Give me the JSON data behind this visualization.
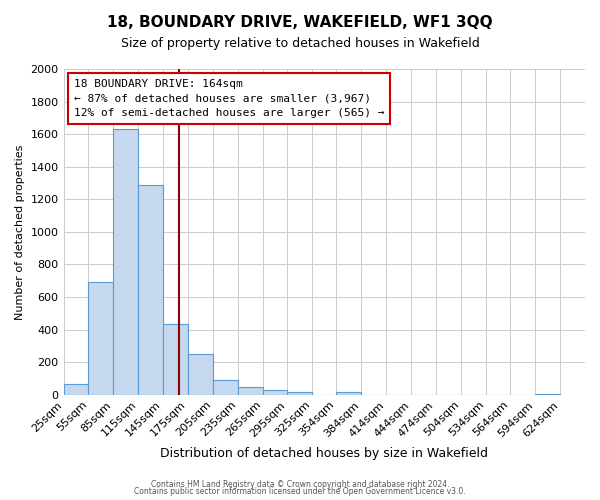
{
  "title": "18, BOUNDARY DRIVE, WAKEFIELD, WF1 3QQ",
  "subtitle": "Size of property relative to detached houses in Wakefield",
  "xlabel": "Distribution of detached houses by size in Wakefield",
  "ylabel": "Number of detached properties",
  "bar_heights": [
    65,
    690,
    1630,
    1285,
    435,
    250,
    90,
    50,
    30,
    20,
    0,
    15,
    0,
    0,
    0,
    0,
    0,
    0,
    0,
    5
  ],
  "bin_labels": [
    "25sqm",
    "55sqm",
    "85sqm",
    "115sqm",
    "145sqm",
    "175sqm",
    "205sqm",
    "235sqm",
    "265sqm",
    "295sqm",
    "325sqm",
    "354sqm",
    "384sqm",
    "414sqm",
    "444sqm",
    "474sqm",
    "504sqm",
    "534sqm",
    "564sqm",
    "594sqm",
    "624sqm"
  ],
  "bin_edges": [
    25,
    55,
    85,
    115,
    145,
    175,
    205,
    235,
    265,
    295,
    325,
    354,
    384,
    414,
    444,
    474,
    504,
    534,
    564,
    594,
    624
  ],
  "bar_color": "#c5d8ed",
  "bar_edge_color": "#5b9bd5",
  "property_size": 164,
  "vline_color": "#8b0000",
  "ylim": [
    0,
    2000
  ],
  "yticks": [
    0,
    200,
    400,
    600,
    800,
    1000,
    1200,
    1400,
    1600,
    1800,
    2000
  ],
  "annotation_title": "18 BOUNDARY DRIVE: 164sqm",
  "annotation_line1": "← 87% of detached houses are smaller (3,967)",
  "annotation_line2": "12% of semi-detached houses are larger (565) →",
  "annotation_box_color": "#ffffff",
  "annotation_box_edge": "#cc0000",
  "footer1": "Contains HM Land Registry data © Crown copyright and database right 2024.",
  "footer2": "Contains public sector information licensed under the Open Government Licence v3.0.",
  "bg_color": "#ffffff",
  "grid_color": "#cccccc"
}
